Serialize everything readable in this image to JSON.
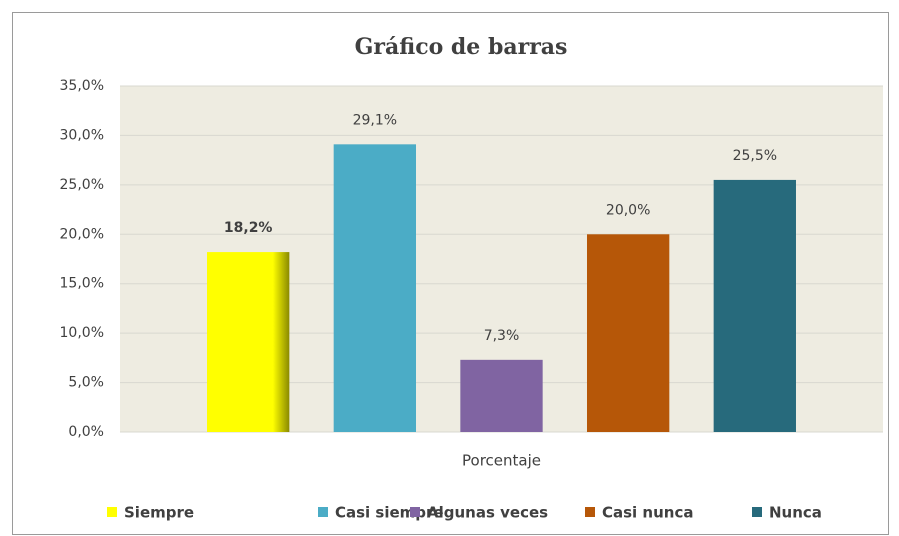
{
  "chart_data": {
    "type": "bar",
    "title": "Gráfico de barras",
    "categories": [
      "Porcentaje"
    ],
    "series": [
      {
        "name": "Siempre",
        "color": "#FFFF00",
        "values": [
          18.2
        ],
        "value_labels": [
          "18,2%"
        ]
      },
      {
        "name": "Casi siempre",
        "color": "#4BACC6",
        "values": [
          29.1
        ],
        "value_labels": [
          "29,1%"
        ]
      },
      {
        "name": "Algunas veces",
        "color": "#8064A2",
        "values": [
          7.3
        ],
        "value_labels": [
          "7,3%"
        ]
      },
      {
        "name": "Casi nunca",
        "color": "#B65708",
        "values": [
          20.0
        ],
        "value_labels": [
          "20,0%"
        ]
      },
      {
        "name": "Nunca",
        "color": "#276A7C",
        "values": [
          25.5
        ],
        "value_labels": [
          "25,5%"
        ]
      }
    ],
    "ylim": [
      0,
      35
    ],
    "yticks": [
      {
        "value": 0,
        "label": "0,0%"
      },
      {
        "value": 5,
        "label": "5,0%"
      },
      {
        "value": 10,
        "label": "10,0%"
      },
      {
        "value": 15,
        "label": "15,0%"
      },
      {
        "value": 20,
        "label": "20,0%"
      },
      {
        "value": 25,
        "label": "25,0%"
      },
      {
        "value": 30,
        "label": "30,0%"
      },
      {
        "value": 35,
        "label": "35,0%"
      }
    ],
    "grid": true,
    "legend": "bottom"
  }
}
